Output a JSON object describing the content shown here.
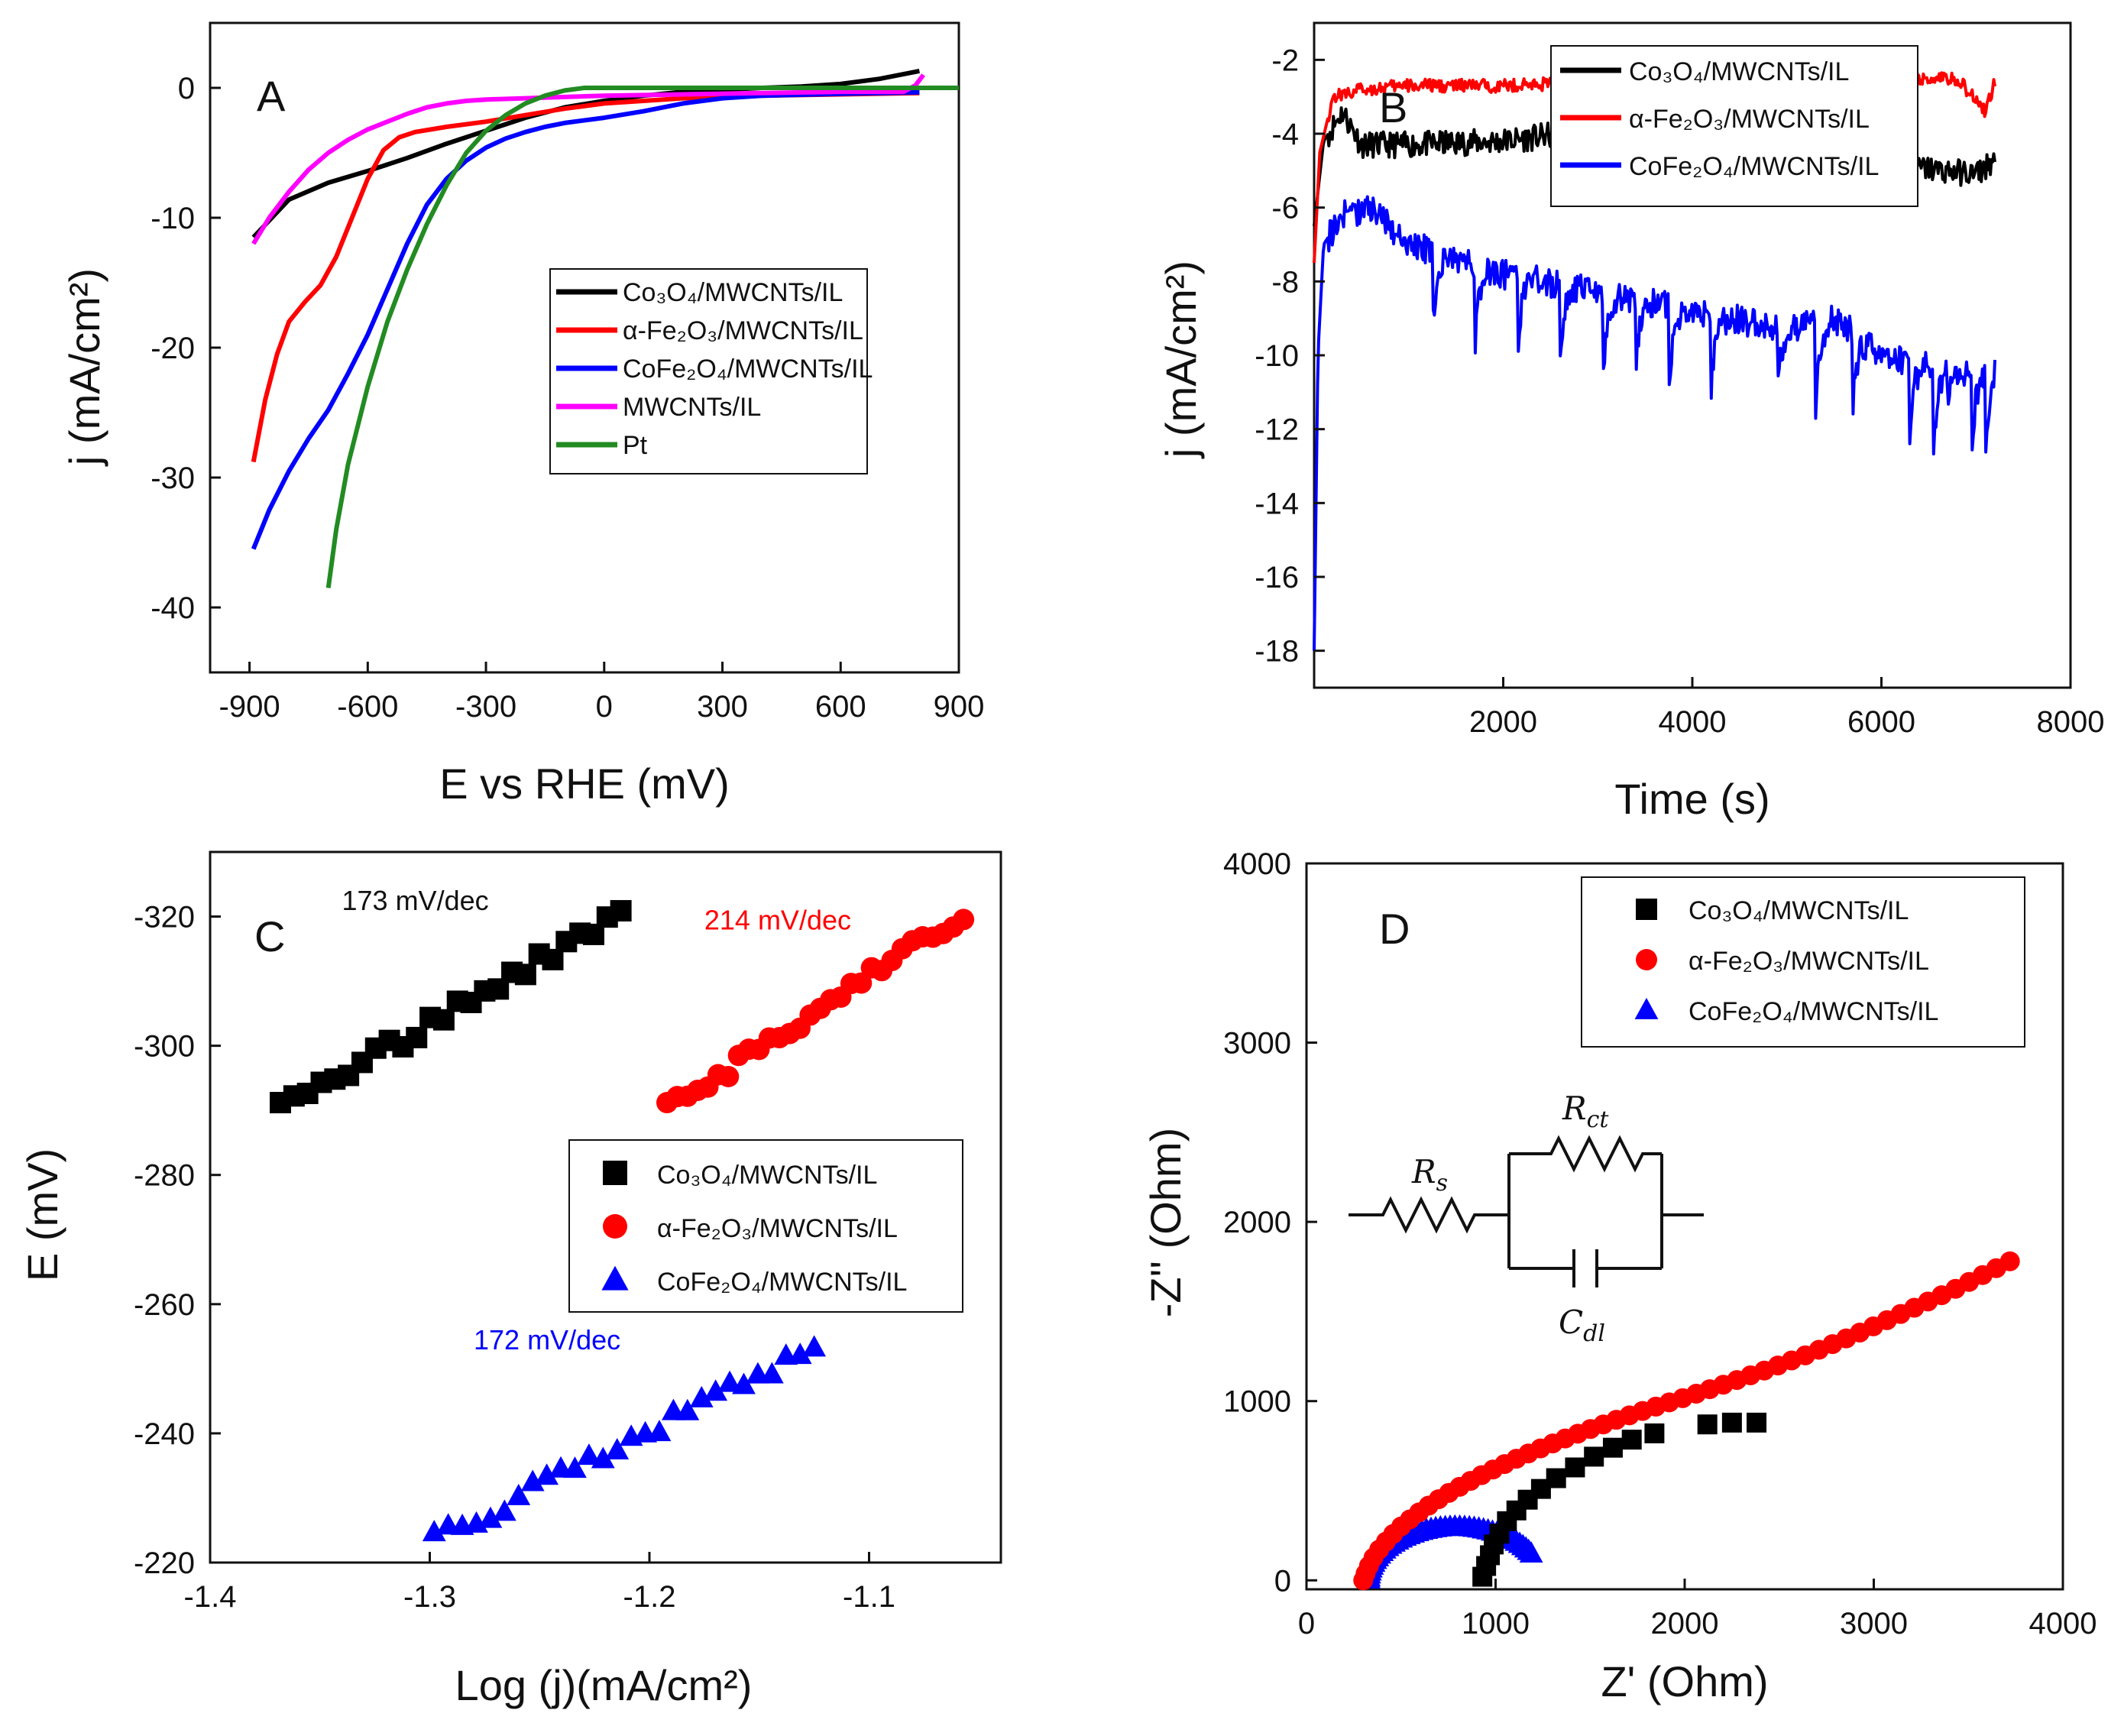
{
  "chart_data": [
    {
      "id": "A",
      "type": "line",
      "panel_label": "A",
      "xlabel": "E vs RHE (mV)",
      "ylabel": "j (mA/cm²)",
      "xlim": [
        -1000,
        900
      ],
      "ylim": [
        -45,
        5
      ],
      "xticks": [
        -900,
        -600,
        -300,
        0,
        300,
        600,
        900
      ],
      "yticks": [
        0,
        -10,
        -20,
        -30,
        -40
      ],
      "series": [
        {
          "name": "Co₃O₄/MWCNTs/IL",
          "color": "#000000",
          "points": [
            [
              -890,
              -11.5
            ],
            [
              -800,
              -8.6
            ],
            [
              -700,
              -7.3
            ],
            [
              -600,
              -6.4
            ],
            [
              -500,
              -5.4
            ],
            [
              -400,
              -4.3
            ],
            [
              -300,
              -3.3
            ],
            [
              -200,
              -2.3
            ],
            [
              -100,
              -1.5
            ],
            [
              0,
              -1.0
            ],
            [
              100,
              -0.6
            ],
            [
              200,
              -0.3
            ],
            [
              300,
              -0.15
            ],
            [
              400,
              0
            ],
            [
              500,
              0.1
            ],
            [
              600,
              0.3
            ],
            [
              700,
              0.7
            ],
            [
              800,
              1.3
            ]
          ]
        },
        {
          "name": "α-Fe₂O₃/MWCNTs/IL",
          "color": "#ff0000",
          "points": [
            [
              -890,
              -28.8
            ],
            [
              -860,
              -24
            ],
            [
              -830,
              -20.5
            ],
            [
              -800,
              -18
            ],
            [
              -760,
              -16.5
            ],
            [
              -720,
              -15.2
            ],
            [
              -680,
              -13
            ],
            [
              -640,
              -10
            ],
            [
              -600,
              -7
            ],
            [
              -560,
              -4.8
            ],
            [
              -520,
              -3.8
            ],
            [
              -480,
              -3.4
            ],
            [
              -400,
              -3.0
            ],
            [
              -300,
              -2.6
            ],
            [
              -200,
              -2.1
            ],
            [
              -100,
              -1.6
            ],
            [
              0,
              -1.2
            ],
            [
              200,
              -0.8
            ],
            [
              400,
              -0.6
            ],
            [
              600,
              -0.5
            ],
            [
              800,
              -0.4
            ]
          ]
        },
        {
          "name": "CoFe₂O₄/MWCNTs/IL",
          "color": "#0000ff",
          "points": [
            [
              -890,
              -35.5
            ],
            [
              -850,
              -32.5
            ],
            [
              -800,
              -29.5
            ],
            [
              -750,
              -27
            ],
            [
              -700,
              -24.8
            ],
            [
              -650,
              -22
            ],
            [
              -600,
              -19
            ],
            [
              -550,
              -15.5
            ],
            [
              -500,
              -12
            ],
            [
              -450,
              -9
            ],
            [
              -400,
              -7
            ],
            [
              -350,
              -5.6
            ],
            [
              -300,
              -4.6
            ],
            [
              -250,
              -3.9
            ],
            [
              -200,
              -3.4
            ],
            [
              -150,
              -3.0
            ],
            [
              -100,
              -2.7
            ],
            [
              0,
              -2.3
            ],
            [
              100,
              -1.8
            ],
            [
              200,
              -1.2
            ],
            [
              300,
              -0.8
            ],
            [
              400,
              -0.6
            ],
            [
              600,
              -0.45
            ],
            [
              800,
              -0.35
            ]
          ]
        },
        {
          "name": "MWCNTs/IL",
          "color": "#ff00ff",
          "points": [
            [
              -890,
              -12
            ],
            [
              -850,
              -10
            ],
            [
              -800,
              -8
            ],
            [
              -750,
              -6.3
            ],
            [
              -700,
              -5
            ],
            [
              -650,
              -4
            ],
            [
              -600,
              -3.2
            ],
            [
              -550,
              -2.6
            ],
            [
              -500,
              -2.0
            ],
            [
              -450,
              -1.5
            ],
            [
              -400,
              -1.2
            ],
            [
              -350,
              -1.0
            ],
            [
              -300,
              -0.9
            ],
            [
              -200,
              -0.8
            ],
            [
              -100,
              -0.7
            ],
            [
              0,
              -0.6
            ],
            [
              200,
              -0.5
            ],
            [
              400,
              -0.4
            ],
            [
              600,
              -0.3
            ],
            [
              760,
              -0.3
            ],
            [
              790,
              0.2
            ],
            [
              810,
              1.0
            ]
          ]
        },
        {
          "name": "Pt",
          "color": "#228b22",
          "points": [
            [
              -700,
              -38.5
            ],
            [
              -680,
              -34
            ],
            [
              -650,
              -29
            ],
            [
              -600,
              -23
            ],
            [
              -550,
              -18
            ],
            [
              -500,
              -14
            ],
            [
              -450,
              -10.5
            ],
            [
              -400,
              -7.5
            ],
            [
              -350,
              -5
            ],
            [
              -300,
              -3.3
            ],
            [
              -250,
              -2.1
            ],
            [
              -200,
              -1.2
            ],
            [
              -150,
              -0.6
            ],
            [
              -100,
              -0.2
            ],
            [
              -50,
              0
            ],
            [
              0,
              0
            ],
            [
              200,
              0
            ],
            [
              400,
              0
            ],
            [
              600,
              0
            ],
            [
              800,
              0
            ],
            [
              900,
              0
            ]
          ]
        }
      ],
      "legend": [
        "Co₃O₄/MWCNTs/IL",
        "α-Fe₂O₃/MWCNTs/IL",
        "CoFe₂O₄/MWCNTs/IL",
        "MWCNTs/IL",
        "Pt"
      ]
    },
    {
      "id": "B",
      "type": "line",
      "panel_label": "B",
      "xlabel": "Time (s)",
      "ylabel": "j (mA/cm²)",
      "xlim": [
        0,
        8000
      ],
      "ylim": [
        -19,
        -1
      ],
      "xticks": [
        2000,
        4000,
        6000,
        8000
      ],
      "yticks": [
        -18,
        -16,
        -14,
        -12,
        -10,
        -8,
        -6,
        -4,
        -2
      ],
      "series": [
        {
          "name": "Co₃O₄/MWCNTs/IL",
          "color": "#000000",
          "points": [
            [
              0,
              -6.5
            ],
            [
              100,
              -4.2
            ],
            [
              300,
              -3.4
            ],
            [
              500,
              -4.3
            ],
            [
              1000,
              -4.3
            ],
            [
              2000,
              -4.2
            ],
            [
              3000,
              -3.9
            ],
            [
              3200,
              -3.8
            ],
            [
              4000,
              -4.4
            ],
            [
              5000,
              -4.5
            ],
            [
              6000,
              -4.8
            ],
            [
              7000,
              -5.1
            ],
            [
              7200,
              -4.7
            ]
          ],
          "noise": 0.35,
          "spikes": []
        },
        {
          "name": "α-Fe₂O₃/MWCNTs/IL",
          "color": "#ff0000",
          "points": [
            [
              0,
              -7.5
            ],
            [
              60,
              -4.5
            ],
            [
              200,
              -3.0
            ],
            [
              500,
              -2.8
            ],
            [
              1000,
              -2.7
            ],
            [
              2000,
              -2.7
            ],
            [
              3000,
              -2.6
            ],
            [
              4000,
              -2.6
            ],
            [
              5000,
              -2.6
            ],
            [
              6000,
              -2.5
            ],
            [
              6800,
              -2.5
            ],
            [
              7000,
              -3.1
            ],
            [
              7100,
              -3.4
            ],
            [
              7200,
              -2.6
            ]
          ],
          "noise": 0.18,
          "spikes": []
        },
        {
          "name": "CoFe₂O₄/MWCNTs/IL",
          "color": "#0000ff",
          "points": [
            [
              0,
              -18
            ],
            [
              40,
              -10
            ],
            [
              100,
              -7
            ],
            [
              300,
              -6.2
            ],
            [
              600,
              -6.0
            ],
            [
              1000,
              -7
            ],
            [
              2000,
              -7.8
            ],
            [
              3000,
              -8.3
            ],
            [
              4000,
              -8.8
            ],
            [
              5000,
              -9.3
            ],
            [
              5500,
              -9.0
            ],
            [
              6000,
              -10.0
            ],
            [
              7000,
              -10.5
            ],
            [
              7200,
              -10.2
            ]
          ],
          "noise": 0.4,
          "spikes": [
            [
              1250,
              -9.6
            ],
            [
              1700,
              -9.8
            ],
            [
              2150,
              -10.0
            ],
            [
              2600,
              -10.2
            ],
            [
              3050,
              -11.2
            ],
            [
              3400,
              -10.5
            ],
            [
              3750,
              -11.3
            ],
            [
              4200,
              -10.8
            ],
            [
              4900,
              -11.0
            ],
            [
              5300,
              -11.9
            ],
            [
              5700,
              -11.3
            ],
            [
              6300,
              -12.2
            ],
            [
              6550,
              -12.9
            ],
            [
              6700,
              -11.2
            ],
            [
              6950,
              -12.7
            ],
            [
              7100,
              -12.9
            ]
          ]
        }
      ],
      "legend": [
        "Co₃O₄/MWCNTs/IL",
        "α-Fe₂O₃/MWCNTs/IL",
        "CoFe₂O₄/MWCNTs/IL"
      ]
    },
    {
      "id": "C",
      "type": "scatter",
      "panel_label": "C",
      "xlabel": "Log (j)(mA/cm²)",
      "ylabel": "E (mV)",
      "xlim": [
        -1.4,
        -1.04
      ],
      "ylim": [
        -220,
        -330
      ],
      "xticks": [
        -1.4,
        -1.3,
        -1.2,
        -1.1
      ],
      "yticks": [
        -220,
        -240,
        -260,
        -280,
        -300,
        -320
      ],
      "annotations": [
        {
          "text": "173 mV/dec",
          "color": "#111111",
          "x": -1.34,
          "y": -321
        },
        {
          "text": "214 mV/dec",
          "color": "#ff0000",
          "x": -1.175,
          "y": -318
        },
        {
          "text": "172 mV/dec",
          "color": "#0000ff",
          "x": -1.28,
          "y": -253
        }
      ],
      "series": [
        {
          "name": "Co₃O₄/MWCNTs/IL",
          "color": "#000000",
          "marker": "square",
          "x0": -1.368,
          "x1": -1.213,
          "y0": -290,
          "y1": -320.5,
          "n": 26
        },
        {
          "name": "α-Fe₂O₃/MWCNTs/IL",
          "color": "#ff0000",
          "marker": "circle",
          "x0": -1.192,
          "x1": -1.057,
          "y0": -290,
          "y1": -320.5,
          "n": 30
        },
        {
          "name": "CoFe₂O₄/MWCNTs/IL",
          "color": "#0000ff",
          "marker": "triangle",
          "x0": -1.298,
          "x1": -1.125,
          "y0": -223.5,
          "y1": -253.5,
          "n": 28
        }
      ],
      "legend": [
        "Co₃O₄/MWCNTs/IL",
        "α-Fe₂O₃/MWCNTs/IL",
        "CoFe₂O₄/MWCNTs/IL"
      ]
    },
    {
      "id": "D",
      "type": "scatter",
      "panel_label": "D",
      "xlabel": "Z' (Ohm)",
      "ylabel": "-Z'' (Ohm)",
      "xlim": [
        0,
        4000
      ],
      "ylim": [
        -50,
        4000
      ],
      "xticks": [
        0,
        1000,
        2000,
        3000,
        4000
      ],
      "yticks": [
        0,
        1000,
        2000,
        3000,
        4000
      ],
      "circuit_labels": {
        "rs": "R",
        "rs_sub": "s",
        "rct": "R",
        "rct_sub": "ct",
        "cdl": "C",
        "cdl_sub": "dl"
      },
      "series": [
        {
          "name": "Co₃O₄/MWCNTs/IL",
          "color": "#000000",
          "marker": "square",
          "points": [
            [
              930,
              20
            ],
            [
              950,
              80
            ],
            [
              970,
              140
            ],
            [
              990,
              200
            ],
            [
              1020,
              260
            ],
            [
              1060,
              330
            ],
            [
              1110,
              390
            ],
            [
              1170,
              450
            ],
            [
              1240,
              510
            ],
            [
              1320,
              570
            ],
            [
              1420,
              630
            ],
            [
              1520,
              690
            ],
            [
              1620,
              740
            ],
            [
              1720,
              785
            ],
            [
              1840,
              820
            ],
            [
              2120,
              870
            ],
            [
              2250,
              880
            ],
            [
              2380,
              880
            ]
          ]
        },
        {
          "name": "α-Fe₂O₃/MWCNTs/IL",
          "color": "#ff0000",
          "marker": "circle",
          "curve": [
            [
              300,
              0
            ],
            [
              320,
              60
            ],
            [
              350,
              120
            ],
            [
              390,
              180
            ],
            [
              440,
              240
            ],
            [
              500,
              300
            ],
            [
              570,
              360
            ],
            [
              650,
              420
            ],
            [
              740,
              480
            ],
            [
              840,
              540
            ],
            [
              950,
              600
            ],
            [
              1070,
              660
            ],
            [
              1200,
              720
            ],
            [
              1340,
              780
            ],
            [
              1490,
              840
            ],
            [
              1650,
              900
            ],
            [
              1820,
              960
            ],
            [
              2000,
              1020
            ],
            [
              2200,
              1090
            ],
            [
              2420,
              1170
            ],
            [
              2650,
              1260
            ],
            [
              2900,
              1370
            ],
            [
              3150,
              1490
            ],
            [
              3420,
              1620
            ],
            [
              3720,
              1780
            ]
          ],
          "n": 56
        },
        {
          "name": "CoFe₂O₄/MWCNTs/IL",
          "color": "#0000ff",
          "marker": "triangle",
          "arc": {
            "cx": 790,
            "r": 460,
            "ry": 300,
            "start": 180,
            "end": 30
          },
          "n": 48
        }
      ],
      "legend": [
        "Co₃O₄/MWCNTs/IL",
        "α-Fe₂O₃/MWCNTs/IL",
        "CoFe₂O₄/MWCNTs/IL"
      ]
    }
  ]
}
